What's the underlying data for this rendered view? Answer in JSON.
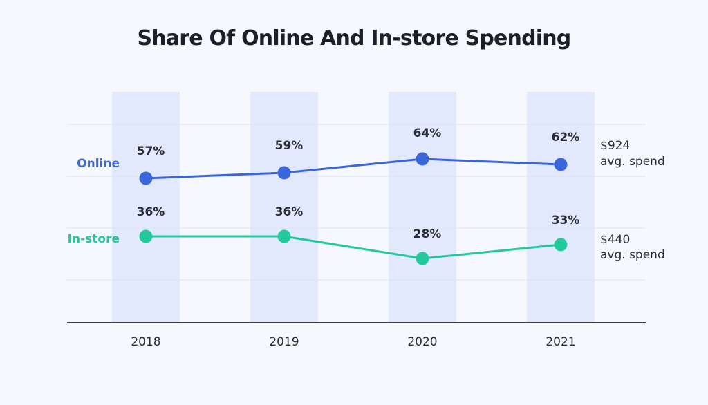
{
  "chart_data": {
    "type": "line",
    "title": "Share Of Online And In-store Spending",
    "categories": [
      "2018",
      "2019",
      "2020",
      "2021"
    ],
    "ylim": [
      0,
      100
    ],
    "grid": true,
    "series": [
      {
        "name": "Online",
        "values": [
          57,
          59,
          64,
          62
        ],
        "labels": [
          "57%",
          "59%",
          "64%",
          "62%"
        ],
        "color": "#3a66dc",
        "note_amount": "$924",
        "note_text": "avg. spend"
      },
      {
        "name": "In-store",
        "values": [
          36,
          36,
          28,
          33
        ],
        "labels": [
          "36%",
          "36%",
          "28%",
          "33%"
        ],
        "color": "#22c99b",
        "note_amount": "$440",
        "note_text": "avg. spend"
      }
    ]
  },
  "colors": {
    "column_band": "#e3e9fd",
    "gridline": "#dfe2ec",
    "axis": "#3a3c46",
    "text": "#2a2c36"
  }
}
